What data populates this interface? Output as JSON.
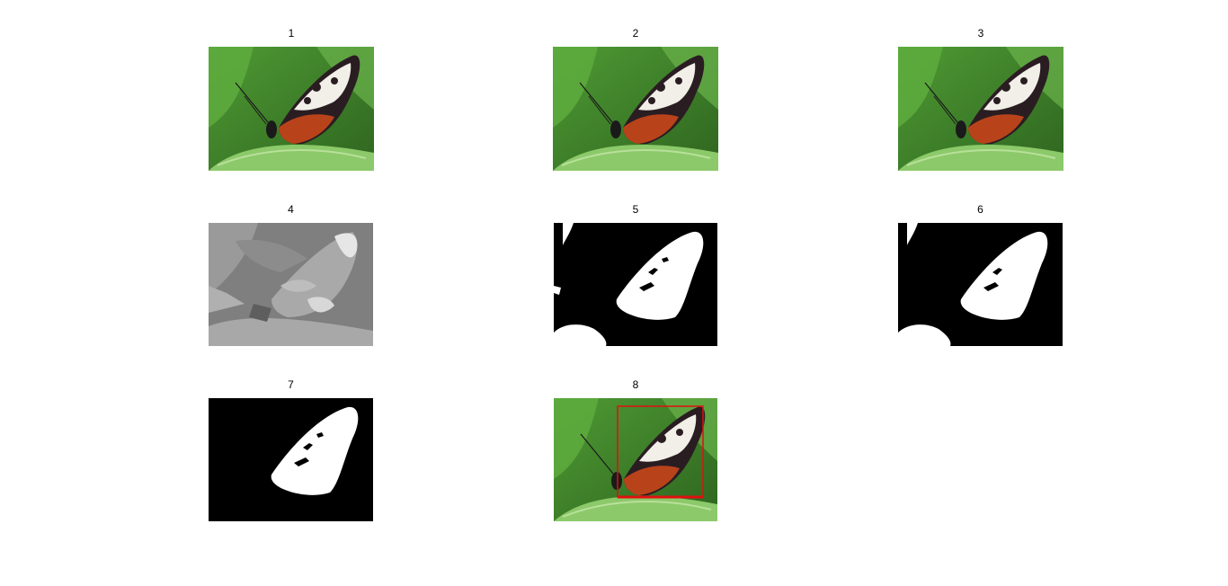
{
  "figure": {
    "panels": [
      {
        "title": "1",
        "kind": "color"
      },
      {
        "title": "2",
        "kind": "color"
      },
      {
        "title": "3",
        "kind": "color"
      },
      {
        "title": "4",
        "kind": "segmented"
      },
      {
        "title": "5",
        "kind": "mask-raw"
      },
      {
        "title": "6",
        "kind": "mask-clean"
      },
      {
        "title": "7",
        "kind": "mask-final"
      },
      {
        "title": "8",
        "kind": "color-boxed"
      }
    ]
  },
  "colors": {
    "background": "#ffffff",
    "leaf_dark": "#3d7d2a",
    "leaf_light": "#8cc96a",
    "wing_dark": "#2a1d22",
    "wing_orange": "#b8431a",
    "wing_white": "#f1efe8",
    "mask_black": "#000000",
    "mask_white": "#ffffff",
    "box_red": "#e01010"
  }
}
